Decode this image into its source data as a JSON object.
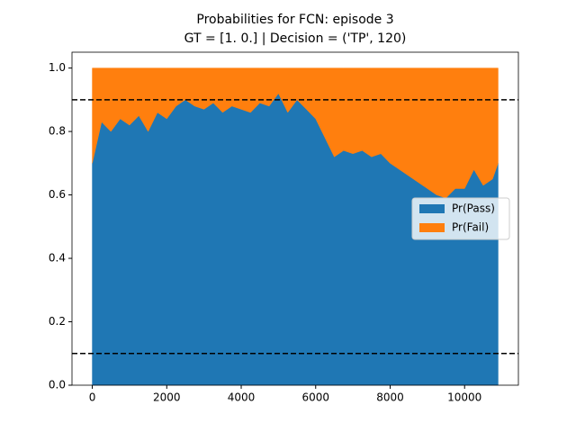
{
  "chart_data": {
    "type": "stacked_area",
    "title": "Probabilities for FCN: episode 3",
    "subtitle": "GT = [1. 0.] | Decision = ('TP', 120)",
    "x": [
      0,
      250,
      500,
      750,
      1000,
      1250,
      1500,
      1750,
      2000,
      2250,
      2500,
      2750,
      3000,
      3250,
      3500,
      3750,
      4000,
      4250,
      4500,
      4750,
      5000,
      5250,
      5500,
      5750,
      6000,
      6250,
      6500,
      6750,
      7000,
      7250,
      7500,
      7750,
      8000,
      8250,
      8500,
      8750,
      9000,
      9250,
      9500,
      9750,
      10000,
      10250,
      10500,
      10750,
      10900
    ],
    "series": [
      {
        "name": "Pr(Pass)",
        "color": "#1f77b4",
        "values": [
          0.7,
          0.83,
          0.8,
          0.84,
          0.82,
          0.85,
          0.8,
          0.86,
          0.84,
          0.88,
          0.9,
          0.88,
          0.87,
          0.89,
          0.86,
          0.88,
          0.87,
          0.86,
          0.89,
          0.88,
          0.92,
          0.86,
          0.9,
          0.87,
          0.84,
          0.78,
          0.72,
          0.74,
          0.73,
          0.74,
          0.72,
          0.73,
          0.7,
          0.68,
          0.66,
          0.64,
          0.62,
          0.6,
          0.59,
          0.62,
          0.62,
          0.68,
          0.63,
          0.65,
          0.7
        ]
      },
      {
        "name": "Pr(Fail)",
        "color": "#ff7f0e",
        "values": [
          0.3,
          0.17,
          0.2,
          0.16,
          0.18,
          0.15,
          0.2,
          0.14,
          0.16,
          0.12,
          0.1,
          0.12,
          0.13,
          0.11,
          0.14,
          0.12,
          0.13,
          0.14,
          0.11,
          0.12,
          0.08,
          0.14,
          0.1,
          0.13,
          0.16,
          0.22,
          0.28,
          0.26,
          0.27,
          0.26,
          0.28,
          0.27,
          0.3,
          0.32,
          0.34,
          0.36,
          0.38,
          0.4,
          0.41,
          0.38,
          0.38,
          0.32,
          0.37,
          0.35,
          0.3
        ]
      }
    ],
    "xlim": [
      -545,
      11445
    ],
    "ylim": [
      0,
      1.05
    ],
    "xticks": [
      0,
      2000,
      4000,
      6000,
      8000,
      10000
    ],
    "yticks": [
      {
        "value": 0,
        "label": "0.0"
      },
      {
        "value": 0.2,
        "label": "0.2"
      },
      {
        "value": 0.4,
        "label": "0.4"
      },
      {
        "value": 0.6,
        "label": "0.6"
      },
      {
        "value": 0.8,
        "label": "0.8"
      },
      {
        "value": 1,
        "label": "1.0"
      }
    ],
    "hlines": [
      0.9,
      0.1
    ],
    "legend": "center right"
  }
}
